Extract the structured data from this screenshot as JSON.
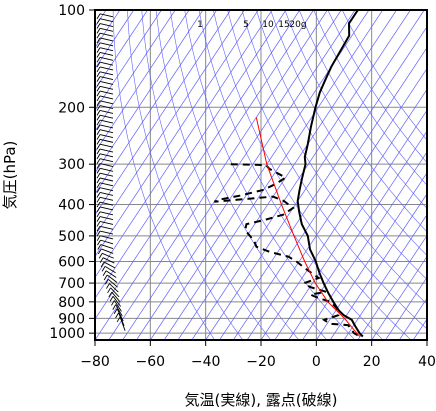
{
  "chart_data": {
    "type": "line",
    "title": "",
    "xlabel": "気温(実線), 露点(破線)",
    "ylabel": "気圧(hPa)",
    "x_ticks": [
      "−80",
      "−60",
      "−40",
      "−20",
      "0",
      "20",
      "40"
    ],
    "x_tick_values": [
      -80,
      -60,
      -40,
      -20,
      0,
      20,
      40
    ],
    "y_ticks": [
      "100",
      "200",
      "300",
      "400",
      "500",
      "600",
      "700",
      "800",
      "900",
      "1000"
    ],
    "y_tick_values": [
      100,
      200,
      300,
      400,
      500,
      600,
      700,
      800,
      900,
      1000
    ],
    "xlim": [
      -80,
      40
    ],
    "ylim": [
      1050,
      100
    ],
    "y_scale": "log",
    "grid": true,
    "mixing_ratio_labels": [
      "1",
      "5",
      "10",
      "15",
      "20g"
    ],
    "mixing_ratio_values": [
      1,
      5,
      10,
      15,
      20
    ],
    "series": [
      {
        "color": "#000000",
        "style": "solid",
        "points": [
          [
            100,
            -64
          ],
          [
            110,
            -64
          ],
          [
            120,
            -61
          ],
          [
            150,
            -60
          ],
          [
            165,
            -59
          ],
          [
            180,
            -58
          ],
          [
            200,
            -56
          ],
          [
            230,
            -53
          ],
          [
            260,
            -50
          ],
          [
            285,
            -48
          ],
          [
            300,
            -46
          ],
          [
            330,
            -44
          ],
          [
            360,
            -42
          ],
          [
            390,
            -40
          ],
          [
            420,
            -37
          ],
          [
            460,
            -33
          ],
          [
            500,
            -28
          ],
          [
            550,
            -24
          ],
          [
            600,
            -19
          ],
          [
            650,
            -15
          ],
          [
            700,
            -11
          ],
          [
            750,
            -7
          ],
          [
            800,
            -3
          ],
          [
            850,
            1
          ],
          [
            880,
            4
          ],
          [
            910,
            8
          ],
          [
            940,
            10
          ],
          [
            970,
            12
          ],
          [
            1000,
            14
          ],
          [
            1025,
            16
          ]
        ]
      },
      {
        "color": "#000000",
        "style": "dashed",
        "points": [
          [
            300,
            -73
          ],
          [
            302,
            -60
          ],
          [
            310,
            -58
          ],
          [
            330,
            -50
          ],
          [
            345,
            -52
          ],
          [
            360,
            -55
          ],
          [
            375,
            -62
          ],
          [
            385,
            -68
          ],
          [
            392,
            -70
          ],
          [
            385,
            -60
          ],
          [
            378,
            -50
          ],
          [
            390,
            -45
          ],
          [
            410,
            -40
          ],
          [
            430,
            -42
          ],
          [
            445,
            -47
          ],
          [
            460,
            -53
          ],
          [
            480,
            -52
          ],
          [
            520,
            -46
          ],
          [
            540,
            -44
          ],
          [
            560,
            -38
          ],
          [
            580,
            -30
          ],
          [
            600,
            -26
          ],
          [
            625,
            -22
          ],
          [
            650,
            -18
          ],
          [
            675,
            -14
          ],
          [
            700,
            -18
          ],
          [
            720,
            -15
          ],
          [
            745,
            -8
          ],
          [
            760,
            -13
          ],
          [
            780,
            -9
          ],
          [
            800,
            -4
          ],
          [
            840,
            0
          ],
          [
            880,
            2
          ],
          [
            910,
            -2
          ],
          [
            935,
            1
          ],
          [
            945,
            8
          ],
          [
            960,
            9
          ],
          [
            1000,
            12
          ],
          [
            1025,
            15
          ]
        ]
      },
      {
        "color": "#ff0000",
        "style": "solid",
        "points": [
          [
            215,
            -75
          ],
          [
            300,
            -60
          ],
          [
            400,
            -45
          ],
          [
            500,
            -33
          ],
          [
            600,
            -23
          ],
          [
            700,
            -14
          ],
          [
            800,
            -5
          ],
          [
            900,
            5
          ],
          [
            1000,
            13
          ],
          [
            1025,
            15
          ]
        ]
      }
    ],
    "wind_barbs": "present"
  },
  "colors": {
    "isotherm": "#6060ff",
    "grid": "#888888",
    "parcel": "#ff0000",
    "profile": "#000000"
  }
}
